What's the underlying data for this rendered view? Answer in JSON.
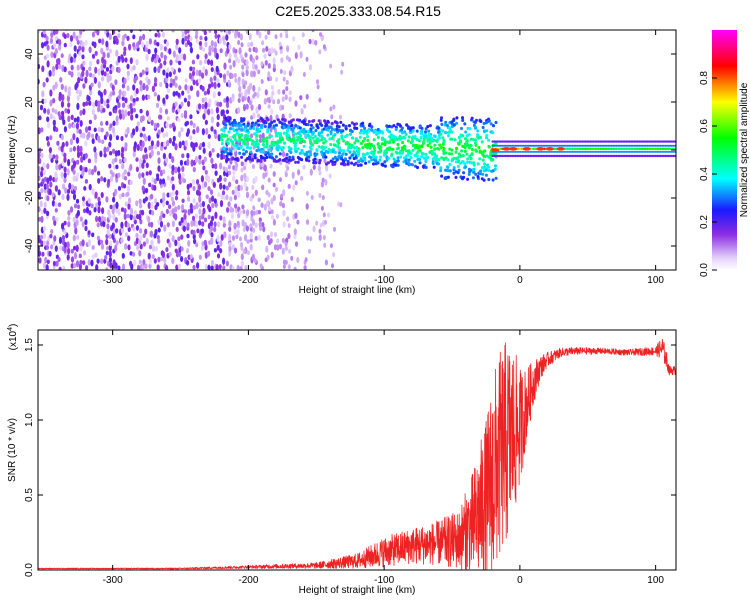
{
  "title": "C2E5.2025.333.08.54.R15",
  "chart_data": [
    {
      "type": "heatmap",
      "title": "C2E5.2025.333.08.54.R15",
      "xlabel": "Height of straight line (km)",
      "ylabel": "Frequency (Hz)",
      "xlim": [
        -355,
        115
      ],
      "ylim": [
        -50,
        50
      ],
      "xticks": [
        -300,
        -200,
        -100,
        0,
        100
      ],
      "yticks": [
        -40,
        -20,
        0,
        20,
        40
      ],
      "colorbar": {
        "label": "Normalized spectral amplitude",
        "range": [
          0,
          1
        ],
        "ticks": [
          "0.0",
          "0.2",
          "0.4",
          "0.6",
          "0.8"
        ],
        "colormap": [
          "#ffffff",
          "#8a2be2",
          "#0000ff",
          "#00ffff",
          "#00ff00",
          "#ffff00",
          "#ff0000",
          "#ff00ff"
        ]
      },
      "regions": [
        {
          "x_range": [
            -355,
            -215
          ],
          "description": "broadband noise, amplitude ~0.1-0.3 across all frequencies"
        },
        {
          "x_range": [
            -215,
            -140
          ],
          "description": "sparse noise plus signal band near 0-10 Hz"
        },
        {
          "x_range": [
            -140,
            -20
          ],
          "description": "signal band centered ~0-8 Hz, amplitude 0.3-0.5"
        },
        {
          "x_range": [
            -20,
            115
          ],
          "description": "narrow line at ~0 Hz, amplitude 0.6-1.0"
        }
      ]
    },
    {
      "type": "line",
      "xlabel": "Height of straight line (km)",
      "ylabel": "SNR (10 * v/v)",
      "multiplier": "(x10",
      "multiplier_exp": "4",
      "multiplier_close": ")",
      "xlim": [
        -355,
        115
      ],
      "ylim": [
        0,
        1.6
      ],
      "xticks": [
        -300,
        -200,
        -100,
        0,
        100
      ],
      "yticks": [
        "0.0",
        "0.5",
        "1.0",
        "1.5"
      ],
      "series": [
        {
          "name": "SNR",
          "color": "#ee2222",
          "x": [
            -355,
            -300,
            -250,
            -200,
            -150,
            -120,
            -100,
            -80,
            -60,
            -45,
            -35,
            -25,
            -20,
            -15,
            -10,
            -5,
            0,
            5,
            10,
            15,
            20,
            30,
            40,
            60,
            80,
            100,
            105,
            108,
            110,
            115
          ],
          "y": [
            0.01,
            0.01,
            0.01,
            0.02,
            0.03,
            0.06,
            0.12,
            0.16,
            0.18,
            0.2,
            0.3,
            0.45,
            0.6,
            0.75,
            0.85,
            0.9,
            0.95,
            1.1,
            1.25,
            1.35,
            1.4,
            1.45,
            1.46,
            1.46,
            1.45,
            1.46,
            1.48,
            1.4,
            1.33,
            1.33
          ],
          "noise": [
            0.003,
            0.003,
            0.004,
            0.01,
            0.02,
            0.05,
            0.1,
            0.12,
            0.15,
            0.2,
            0.35,
            0.55,
            0.7,
            0.7,
            0.7,
            0.6,
            0.4,
            0.25,
            0.15,
            0.08,
            0.05,
            0.03,
            0.025,
            0.02,
            0.02,
            0.03,
            0.08,
            0.06,
            0.03,
            0.03
          ]
        }
      ]
    }
  ]
}
